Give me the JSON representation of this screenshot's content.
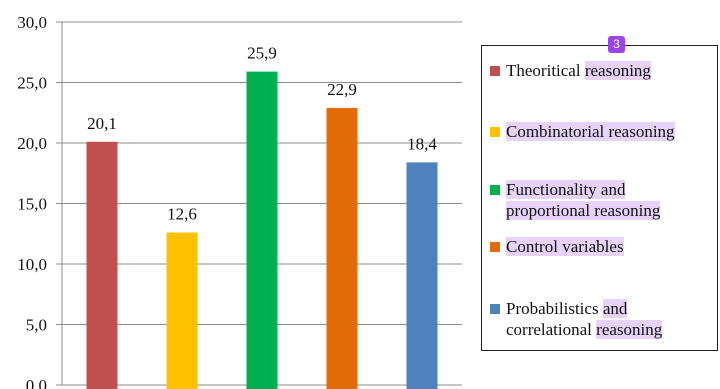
{
  "chart_data": {
    "type": "bar",
    "categories": [
      "Theoritical reasoning",
      "Combinatorial reasoning",
      "Functionality and proportional reasoning",
      "Control variables",
      "Probabilistics and correlational reasoning"
    ],
    "values": [
      20.1,
      12.6,
      25.9,
      22.9,
      18.4
    ],
    "data_labels": [
      "20,1",
      "12,6",
      "25,9",
      "22,9",
      "18,4"
    ],
    "colors": [
      "#c0504d",
      "#ffc000",
      "#00b050",
      "#e36c09",
      "#4f81bd"
    ],
    "ylim": [
      0,
      30
    ],
    "yticks": [
      0,
      5,
      10,
      15,
      20,
      25,
      30
    ],
    "ytick_labels": [
      "0,0",
      "5,0",
      "10,0",
      "15,0",
      "20,0",
      "25,0",
      "30,0"
    ],
    "grid": true,
    "legend_position": "right",
    "title": "",
    "xlabel": "",
    "ylabel": ""
  },
  "legend": {
    "entries": [
      {
        "label": "Theoritical reasoning",
        "color": "#c0504d"
      },
      {
        "label": "Combinatorial reasoning",
        "color": "#ffc000"
      },
      {
        "label": "Functionality and proportional reasoning",
        "color": "#00b050"
      },
      {
        "label": "Control variables",
        "color": "#e36c09"
      },
      {
        "label": "Probabilistics and correlational reasoning",
        "color": "#4f81bd"
      }
    ]
  },
  "annotation": {
    "badge": "3",
    "highlight_color": "#e7d2f9",
    "badge_color": "#9b45e8"
  }
}
